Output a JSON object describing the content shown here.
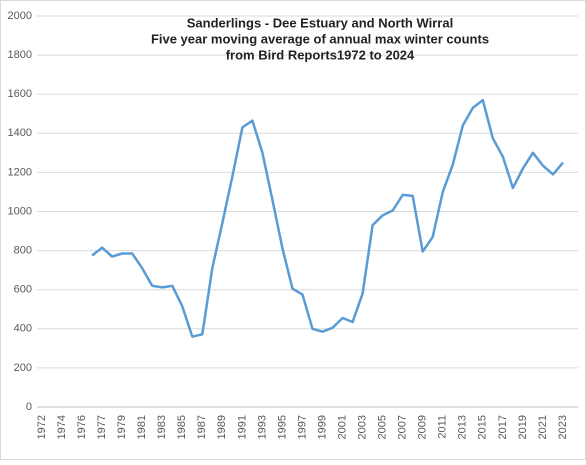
{
  "chart_data": {
    "type": "line",
    "title": [
      "Sanderlings - Dee Estuary and North Wirral",
      "Five year moving average of annual max winter counts",
      "from Bird Reports1972 to 2024"
    ],
    "categories": [
      "1972",
      null,
      "1974",
      null,
      "1976",
      null,
      "1977",
      null,
      "1979",
      null,
      "1981",
      null,
      "1983",
      null,
      "1985",
      null,
      "1987",
      null,
      "1989",
      null,
      "1991",
      null,
      "1993",
      null,
      "1995",
      null,
      "1997",
      null,
      "1999",
      null,
      "2001",
      null,
      "2003",
      null,
      "2005",
      null,
      "2007",
      null,
      "2009",
      null,
      "2011",
      null,
      "2013",
      null,
      "2015",
      null,
      "2017",
      null,
      "2019",
      null,
      "2021",
      null,
      "2023",
      null
    ],
    "series": [
      {
        "name": "Sanderlings",
        "color": "#5b9bd5",
        "values": [
          null,
          null,
          null,
          null,
          null,
          775,
          815,
          770,
          785,
          785,
          710,
          620,
          612,
          620,
          515,
          360,
          372,
          710,
          940,
          1180,
          1430,
          1465,
          1300,
          1060,
          810,
          605,
          575,
          400,
          385,
          405,
          455,
          435,
          580,
          930,
          980,
          1005,
          1085,
          1080,
          795,
          870,
          1100,
          1240,
          1440,
          1530,
          1570,
          1375,
          1280,
          1120,
          1220,
          1300,
          1235,
          1190,
          1250,
          null
        ]
      }
    ],
    "ylim": [
      0,
      2000
    ],
    "yticks": [
      0,
      200,
      400,
      600,
      800,
      1000,
      1200,
      1400,
      1600,
      1800,
      2000
    ],
    "grid": true
  }
}
